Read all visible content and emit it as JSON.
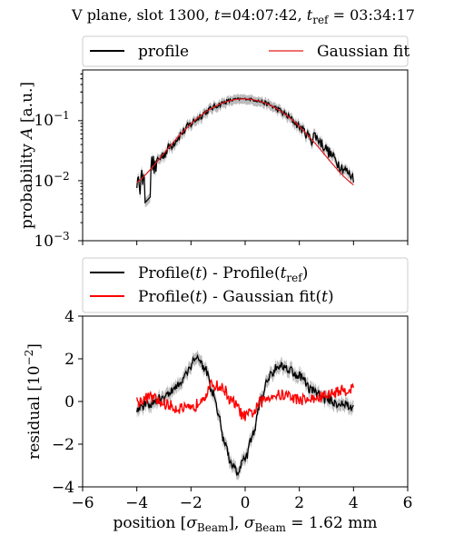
{
  "figure": {
    "title": {
      "prefix": "V plane, slot 1300, ",
      "t_symbol": "t",
      "t_value": "=04:07:42, ",
      "tref_symbol": "t",
      "tref_sub": "ref",
      "tref_value": " = 03:34:17"
    }
  },
  "chart_data": [
    {
      "type": "line",
      "name": "profile-panel",
      "yscale": "log",
      "xlim": [
        -6,
        6
      ],
      "ylim": [
        0.001,
        0.7
      ],
      "ylabel_prefix": "probability ",
      "ylabel_symbol": "A",
      "ylabel_suffix": " [a.u.]",
      "yticks": [
        {
          "value": 0.1,
          "base": "10",
          "exp": "−1"
        },
        {
          "value": 0.01,
          "base": "10",
          "exp": "−2"
        },
        {
          "value": 0.001,
          "base": "10",
          "exp": "−3"
        }
      ],
      "legend": {
        "placement": "top (outside)",
        "entries": [
          {
            "label": "profile",
            "color": "#000000"
          },
          {
            "label": "Gaussian fit",
            "color": "#e41a1c"
          }
        ]
      },
      "series": [
        {
          "name": "profile",
          "color": "#000000",
          "band_color": "#a0a0a0",
          "x_range": [
            -4,
            4
          ]
        },
        {
          "name": "Gaussian fit",
          "color": "#e41a1c",
          "mu": -0.05,
          "sigma": 1.38,
          "amplitude": 0.225,
          "offset": 0.0055,
          "x_range": [
            -4,
            4
          ]
        }
      ]
    },
    {
      "type": "line",
      "name": "residual-panel",
      "xlim": [
        -6,
        6
      ],
      "ylim": [
        -4,
        4
      ],
      "xticks": [
        "−6",
        "−4",
        "−2",
        "0",
        "2",
        "4",
        "6"
      ],
      "yticks": [
        "4",
        "2",
        "0",
        "−2",
        "−4"
      ],
      "ylabel_prefix": "residual [10",
      "ylabel_exp": "−2",
      "ylabel_suffix": "]",
      "xlabel_prefix": "position [",
      "xlabel_sigma": "σ",
      "xlabel_sub": "Beam",
      "xlabel_mid": "], ",
      "xlabel_sigma2": "σ",
      "xlabel_sub2": "Beam",
      "xlabel_suffix": " = 1.62 mm",
      "legend": {
        "placement": "top (outside)",
        "entries": [
          {
            "label_a": "Profile(",
            "sym_a": "t",
            "label_b": ") - Profile(",
            "sym_b": "t",
            "sub_b": "ref",
            "label_c": ")",
            "color": "#000000"
          },
          {
            "label_a": "Profile(",
            "sym_a": "t",
            "label_b": ") - Gaussian fit(",
            "sym_b": "t",
            "label_c": ")",
            "color": "#ff0000"
          }
        ]
      },
      "series": [
        {
          "name": "Profile(t) - Profile(t_ref)",
          "color": "#000000",
          "band_color": "#a0a0a0",
          "anchors": [
            [
              -4,
              -0.3
            ],
            [
              -3.5,
              -0.1
            ],
            [
              -3,
              0.2
            ],
            [
              -2.5,
              0.7
            ],
            [
              -2.2,
              1.3
            ],
            [
              -1.8,
              2.1
            ],
            [
              -1.5,
              1.6
            ],
            [
              -1.2,
              0.4
            ],
            [
              -1,
              -0.5
            ],
            [
              -0.8,
              -1.8
            ],
            [
              -0.5,
              -3.0
            ],
            [
              -0.3,
              -3.3
            ],
            [
              0,
              -2.7
            ],
            [
              0.3,
              -1.5
            ],
            [
              0.6,
              0.2
            ],
            [
              0.9,
              1.2
            ],
            [
              1.2,
              1.7
            ],
            [
              1.5,
              1.6
            ],
            [
              2,
              1.2
            ],
            [
              2.5,
              0.5
            ],
            [
              3,
              0.1
            ],
            [
              3.5,
              -0.1
            ],
            [
              4,
              -0.3
            ]
          ]
        },
        {
          "name": "Profile(t) - Gaussian fit(t)",
          "color": "#ff0000",
          "anchors": [
            [
              -4,
              0
            ],
            [
              -3.5,
              0.2
            ],
            [
              -3,
              -0.1
            ],
            [
              -2.5,
              -0.3
            ],
            [
              -2,
              -0.4
            ],
            [
              -1.5,
              0.3
            ],
            [
              -1.2,
              0.8
            ],
            [
              -0.8,
              0.6
            ],
            [
              -0.5,
              0
            ],
            [
              0,
              -0.7
            ],
            [
              0.3,
              -0.5
            ],
            [
              0.6,
              0
            ],
            [
              1,
              0.3
            ],
            [
              1.5,
              0.3
            ],
            [
              2,
              0.1
            ],
            [
              2.5,
              0.1
            ],
            [
              3,
              0.3
            ],
            [
              3.5,
              0.5
            ],
            [
              4,
              0.6
            ]
          ]
        }
      ]
    }
  ]
}
